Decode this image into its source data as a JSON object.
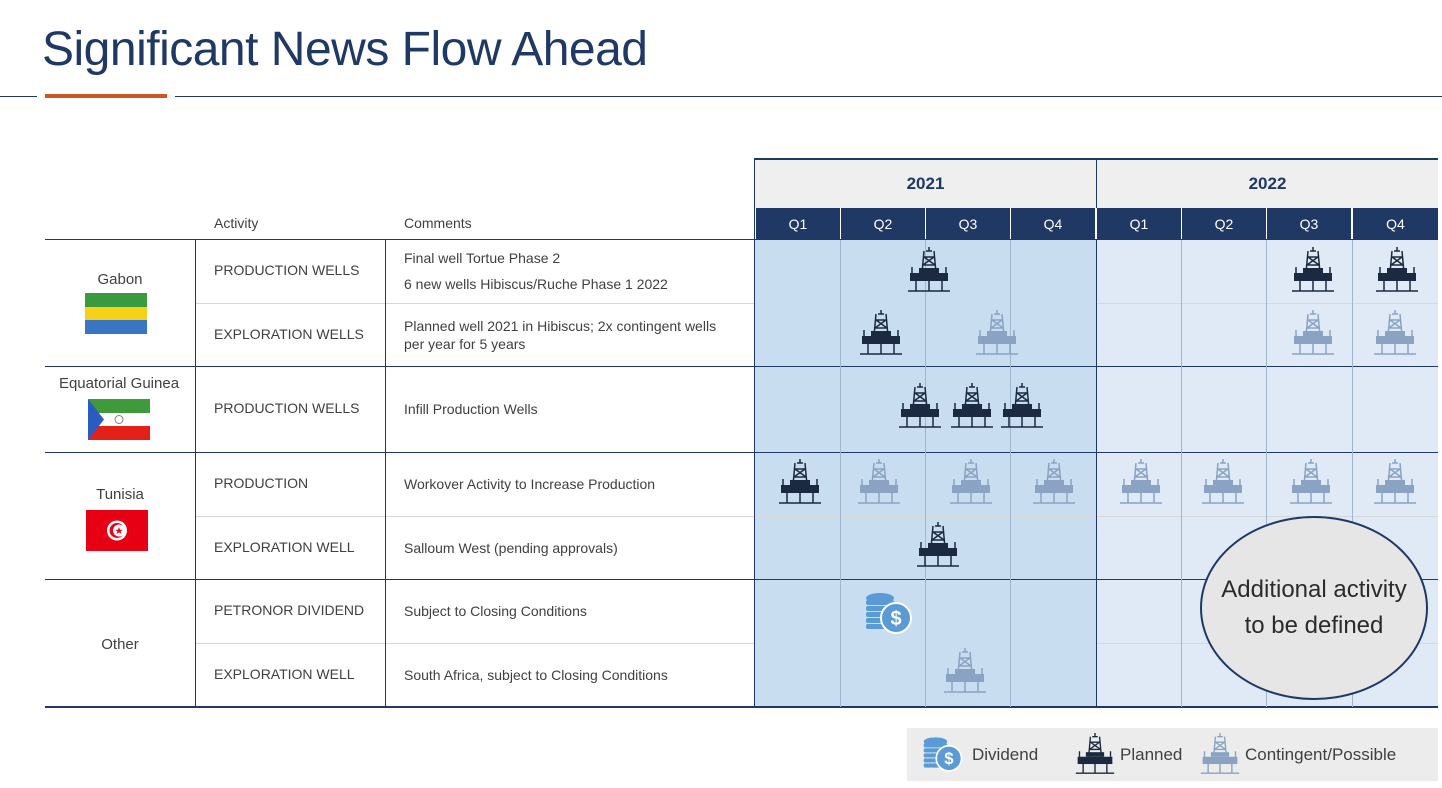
{
  "header": {
    "title": "Significant News Flow Ahead"
  },
  "colors": {
    "navy": "#1f3864",
    "accent": "#d0541d",
    "shade_2021": "#c9ddf1",
    "shade_2022": "#dfeaf6",
    "planned": "#1b2a40",
    "contingent": "#8aa3c3",
    "dividend": "#5b9bd5"
  },
  "columns": {
    "activity": "Activity",
    "comments": "Comments"
  },
  "years": [
    "2021",
    "2022"
  ],
  "quarters": [
    "Q1",
    "Q2",
    "Q3",
    "Q4",
    "Q1",
    "Q2",
    "Q3",
    "Q4"
  ],
  "countries": [
    "Gabon",
    "Equatorial Guinea",
    "Tunisia",
    "Other"
  ],
  "rows": [
    {
      "activity": "PRODUCTION WELLS",
      "comment_lines": [
        "Final well Tortue Phase 2",
        "6 new wells Hibiscus/Ruche Phase 1 2022"
      ]
    },
    {
      "activity": "EXPLORATION WELLS",
      "comment_lines": [
        "Planned well 2021 in Hibiscus; 2x contingent wells",
        "per year for 5 years"
      ]
    },
    {
      "activity": "PRODUCTION WELLS",
      "comment_lines": [
        "Infill Production Wells"
      ]
    },
    {
      "activity": "PRODUCTION",
      "comment_lines": [
        "Workover Activity to Increase Production"
      ]
    },
    {
      "activity": "EXPLORATION WELL",
      "comment_lines": [
        "Salloum West (pending approvals)"
      ]
    },
    {
      "activity": "PETRONOR DIVIDEND",
      "comment_lines": [
        "Subject to Closing Conditions"
      ]
    },
    {
      "activity": "EXPLORATION WELL",
      "comment_lines": [
        "South Africa, subject to Closing Conditions"
      ]
    }
  ],
  "bubble": {
    "text": "Additional activity to be defined"
  },
  "legend": {
    "dividend": "Dividend",
    "planned": "Planned",
    "contingent": "Contingent/Possible"
  },
  "icon_names": {
    "planned": "oil-rig-planned-icon",
    "contingent": "oil-rig-contingent-icon",
    "dividend": "dividend-coins-icon"
  }
}
